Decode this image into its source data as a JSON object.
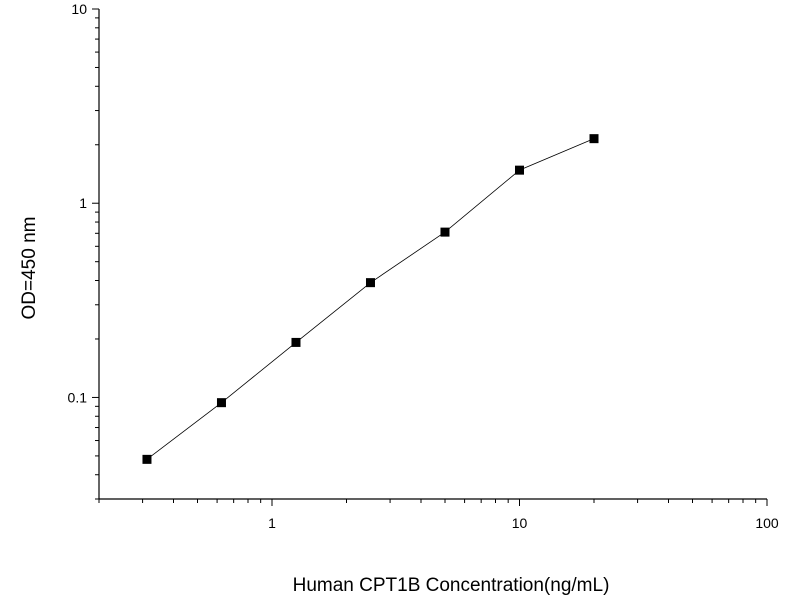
{
  "chart_data": {
    "type": "line",
    "title": "",
    "xlabel": "Human CPT1B Concentration(ng/mL)",
    "ylabel": "OD=450 nm",
    "x_scale": "log",
    "y_scale": "log",
    "xlim": [
      0.2,
      100
    ],
    "ylim": [
      0.03,
      10
    ],
    "x_tick_labels": [
      "1",
      "10",
      "100"
    ],
    "y_tick_labels": [
      "0.1",
      "1",
      "10"
    ],
    "grid": false,
    "legend": "none",
    "marker": "square",
    "series": [
      {
        "x": [
          0.3125,
          0.625,
          1.25,
          2.5,
          5,
          10,
          20
        ],
        "y": [
          0.048,
          0.094,
          0.192,
          0.39,
          0.71,
          1.48,
          2.15
        ],
        "color": "#000000"
      }
    ]
  }
}
